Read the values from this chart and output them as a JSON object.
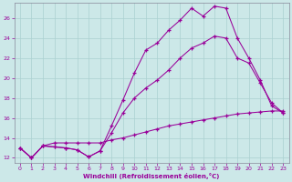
{
  "xlabel": "Windchill (Refroidissement éolien,°C)",
  "bg_color": "#cce8e8",
  "line_color": "#990099",
  "grid_color": "#aad0d0",
  "xlim": [
    -0.5,
    23.5
  ],
  "ylim": [
    11.5,
    27.5
  ],
  "xticks": [
    0,
    1,
    2,
    3,
    4,
    5,
    6,
    7,
    8,
    9,
    10,
    11,
    12,
    13,
    14,
    15,
    16,
    17,
    18,
    19,
    20,
    21,
    22,
    23
  ],
  "yticks": [
    12,
    14,
    16,
    18,
    20,
    22,
    24,
    26
  ],
  "line1_x": [
    0,
    1,
    2,
    3,
    4,
    5,
    6,
    7,
    8,
    9,
    10,
    11,
    12,
    13,
    14,
    15,
    16,
    17,
    18,
    19,
    20,
    21,
    22,
    23
  ],
  "line1_y": [
    13.0,
    12.0,
    13.2,
    13.1,
    13.0,
    12.8,
    12.1,
    12.7,
    15.2,
    17.8,
    20.5,
    22.8,
    23.5,
    24.8,
    25.8,
    27.0,
    26.2,
    27.2,
    27.0,
    24.0,
    22.0,
    19.8,
    17.2,
    16.5
  ],
  "line2_x": [
    0,
    1,
    2,
    3,
    4,
    5,
    6,
    7,
    8,
    9,
    10,
    11,
    12,
    13,
    14,
    15,
    16,
    17,
    18,
    19,
    20,
    21,
    22,
    23
  ],
  "line2_y": [
    13.0,
    12.0,
    13.2,
    13.1,
    13.0,
    12.8,
    12.1,
    12.7,
    14.5,
    16.5,
    18.0,
    19.0,
    19.8,
    20.8,
    22.0,
    23.0,
    23.5,
    24.2,
    24.0,
    22.0,
    21.5,
    19.5,
    17.5,
    16.5
  ],
  "line3_x": [
    0,
    1,
    2,
    3,
    4,
    5,
    6,
    7,
    8,
    9,
    10,
    11,
    12,
    13,
    14,
    15,
    16,
    17,
    18,
    19,
    20,
    21,
    22,
    23
  ],
  "line3_y": [
    13.0,
    12.0,
    13.2,
    13.5,
    13.5,
    13.5,
    13.5,
    13.5,
    13.8,
    14.0,
    14.3,
    14.6,
    14.9,
    15.2,
    15.4,
    15.6,
    15.8,
    16.0,
    16.2,
    16.4,
    16.5,
    16.6,
    16.7,
    16.7
  ]
}
